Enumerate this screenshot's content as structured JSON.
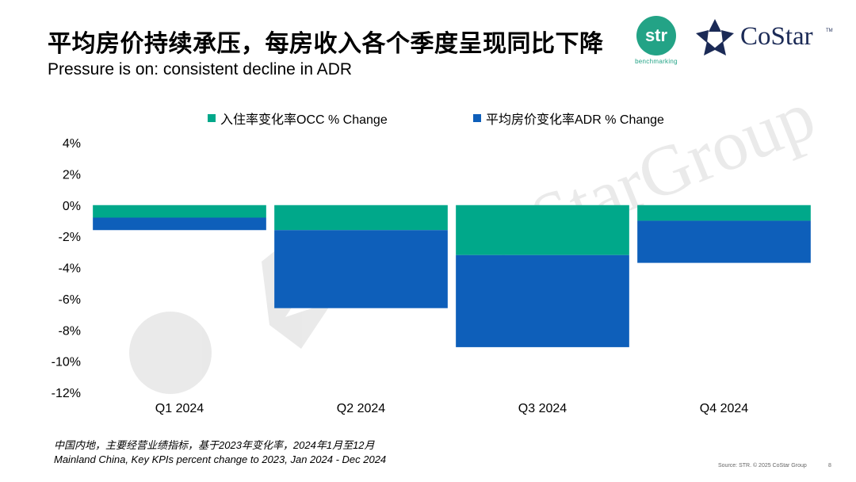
{
  "header": {
    "title": "平均房价持续承压，每房收入各个季度呈现同比下降",
    "subtitle": "Pressure is on: consistent decline in ADR"
  },
  "logos": {
    "str_text": "str",
    "str_sub": "benchmarking",
    "costar_text": "CoStar",
    "costar_tm": "TM",
    "watermark_text": "CoStarGroup"
  },
  "colors": {
    "occ": "#00a88a",
    "adr": "#0e5fba",
    "str": "#23a386",
    "costar": "#1b2a56"
  },
  "chart_data": {
    "type": "bar",
    "stacked": true,
    "categories": [
      "Q1 2024",
      "Q2 2024",
      "Q3 2024",
      "Q4 2024"
    ],
    "series": [
      {
        "name": "入住率变化率OCC % Change",
        "values": [
          -0.8,
          -1.6,
          -3.2,
          -1.0
        ]
      },
      {
        "name": "平均房价变化率ADR % Change",
        "values": [
          -0.8,
          -5.0,
          -5.9,
          -2.7
        ]
      }
    ],
    "yticks": [
      "4%",
      "2%",
      "0%",
      "-2%",
      "-4%",
      "-6%",
      "-8%",
      "-10%",
      "-12%"
    ],
    "ytick_values": [
      4,
      2,
      0,
      -2,
      -4,
      -6,
      -8,
      -10,
      -12
    ],
    "ylim": [
      -12,
      4
    ],
    "grid": false,
    "legend_position": "top"
  },
  "footer": {
    "note_cn": "中国内地，主要经营业绩指标，基于2023年变化率，2024年1月至12月",
    "note_en": "Mainland China, Key KPIs percent change to 2023, Jan 2024 - Dec 2024",
    "source": "Source: STR. © 2025 CoStar Group",
    "page": "8"
  }
}
